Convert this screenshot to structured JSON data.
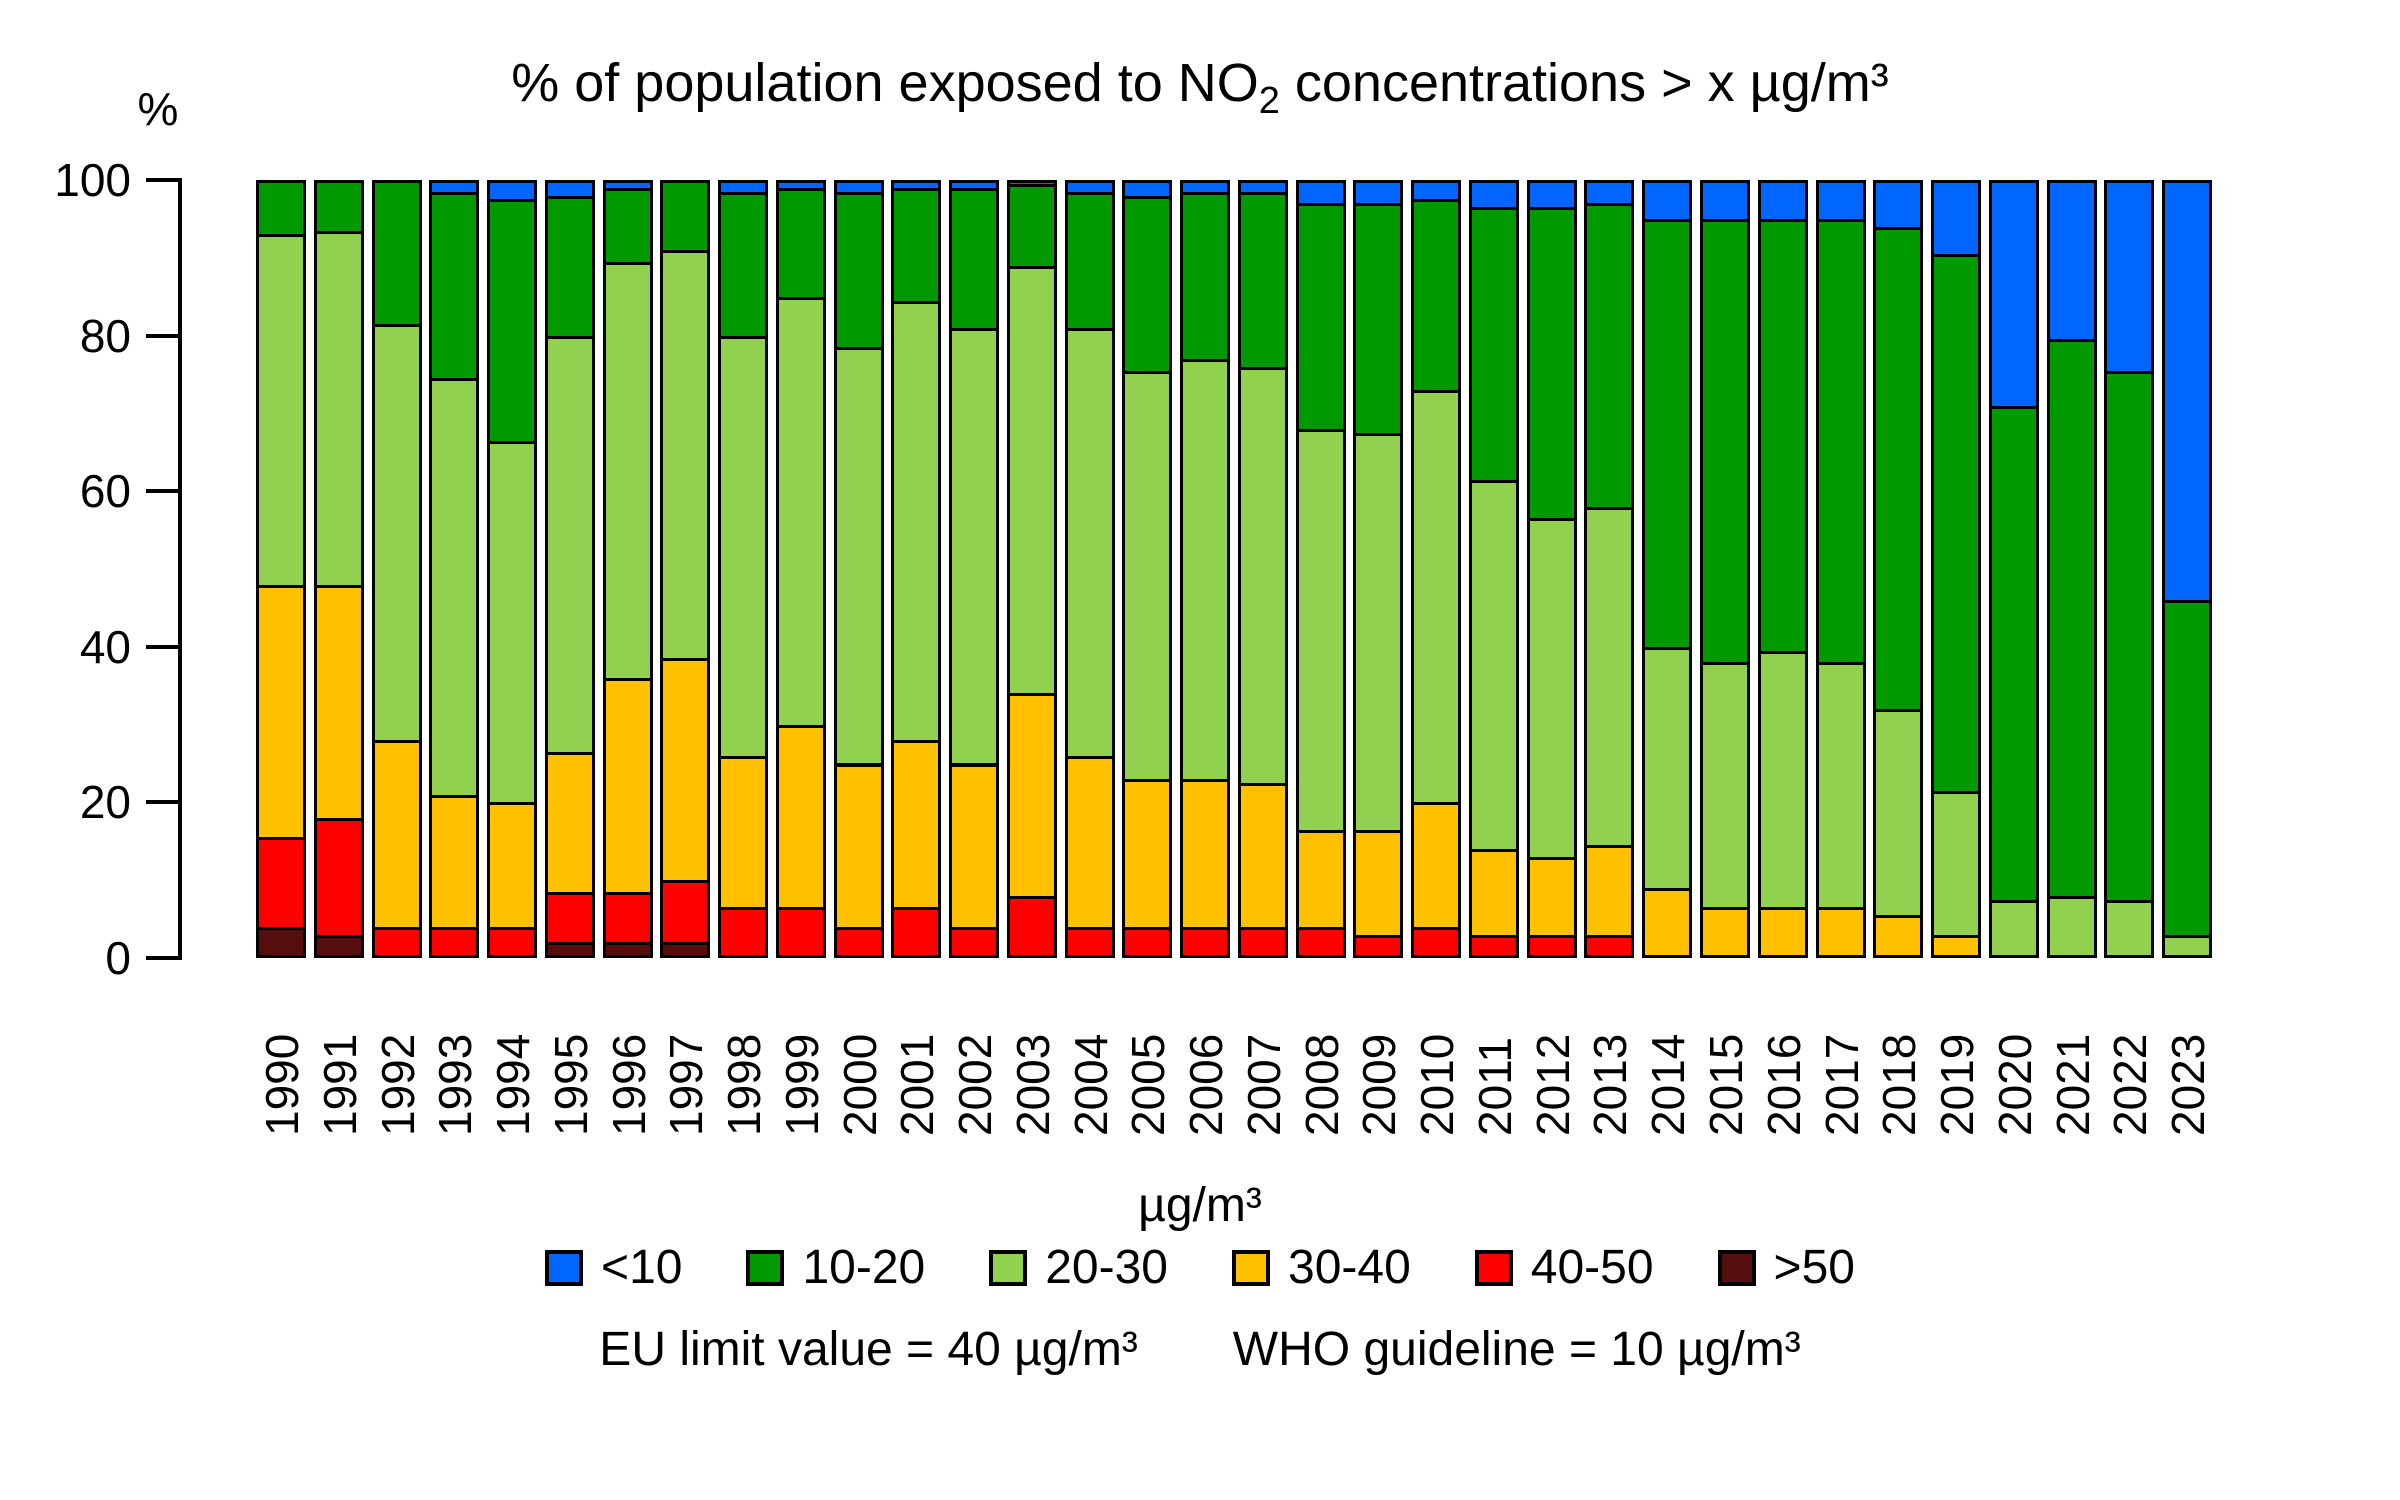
{
  "title": {
    "pre": "% of population exposed to NO",
    "sub": "2",
    "post": " concentrations > x µg/m³"
  },
  "y_axis": {
    "label": "%",
    "ticks": [
      0,
      20,
      40,
      60,
      80,
      100
    ]
  },
  "legend": {
    "title": "µg/m³",
    "items": [
      {
        "label": "<10",
        "color": "#0066FF"
      },
      {
        "label": "10-20",
        "color": "#009900"
      },
      {
        "label": "20-30",
        "color": "#92D050"
      },
      {
        "label": "30-40",
        "color": "#FFC000"
      },
      {
        "label": "40-50",
        "color": "#FF0000"
      },
      {
        "label": ">50",
        "color": "#560D0D"
      }
    ]
  },
  "footnotes": {
    "eu": "EU limit value = 40 µg/m³",
    "who": "WHO guideline = 10 µg/m³"
  },
  "chart_data": {
    "type": "bar",
    "stacked": true,
    "title": "% of population exposed to NO2 concentrations > x µg/m³",
    "xlabel": "",
    "ylabel": "%",
    "ylim": [
      0,
      100
    ],
    "grid": false,
    "legend_position": "bottom",
    "legend_title": "µg/m³",
    "categories": [
      "1990",
      "1991",
      "1992",
      "1993",
      "1994",
      "1995",
      "1996",
      "1997",
      "1998",
      "1999",
      "2000",
      "2001",
      "2002",
      "2003",
      "2004",
      "2005",
      "2006",
      "2007",
      "2008",
      "2009",
      "2010",
      "2011",
      "2012",
      "2013",
      "2014",
      "2015",
      "2016",
      "2017",
      "2018",
      "2019",
      "2020",
      "2021",
      "2022",
      "2023"
    ],
    "stack_order_bottom_to_top": [
      ">50",
      "40-50",
      "30-40",
      "20-30",
      "10-20",
      "<10"
    ],
    "series": [
      {
        "name": "<10",
        "color": "#0066FF",
        "values": [
          0,
          0,
          0,
          1.5,
          2.5,
          2,
          1,
          0,
          1.5,
          1,
          1.5,
          1,
          1,
          0.5,
          1.5,
          2,
          1.5,
          1.5,
          3,
          3,
          2.5,
          3.5,
          3.5,
          3,
          5,
          5,
          5,
          5,
          6,
          9.5,
          29,
          20.5,
          24.5,
          54
        ]
      },
      {
        "name": "10-20",
        "color": "#009900",
        "values": [
          7,
          6.5,
          18.5,
          24,
          31,
          18,
          9.5,
          9,
          18.5,
          14,
          20,
          14.5,
          18,
          10.5,
          17.5,
          22.5,
          21.5,
          22.5,
          29,
          29.5,
          24.5,
          35,
          40,
          39,
          55,
          57,
          55.5,
          57,
          62,
          69,
          63.5,
          71.5,
          68,
          43
        ]
      },
      {
        "name": "20-30",
        "color": "#92D050",
        "values": [
          45,
          45.5,
          53.5,
          53.5,
          46.5,
          53.5,
          53.5,
          52.5,
          54,
          55,
          53.5,
          56.5,
          56,
          55,
          55,
          52.5,
          54,
          53.5,
          51.5,
          51,
          53,
          47.5,
          43.5,
          43.5,
          31,
          31.5,
          33,
          31.5,
          26.5,
          18.5,
          7.5,
          8,
          7.5,
          3
        ]
      },
      {
        "name": "30-40",
        "color": "#FFC000",
        "values": [
          32.5,
          30,
          24,
          17,
          16,
          18,
          27.5,
          28.5,
          19.5,
          23.5,
          21,
          21.5,
          21,
          26,
          22,
          19,
          19,
          18.5,
          12.5,
          13.5,
          16,
          11,
          10,
          11.5,
          9,
          6.5,
          6.5,
          6.5,
          5.5,
          3,
          0,
          0,
          0,
          0
        ]
      },
      {
        "name": "40-50",
        "color": "#FF0000",
        "values": [
          11.5,
          15,
          4,
          4,
          4,
          6.5,
          6.5,
          8,
          6.5,
          6.5,
          4,
          6.5,
          4,
          8,
          4,
          4,
          4,
          4,
          4,
          3,
          4,
          3,
          3,
          3,
          0,
          0,
          0,
          0,
          0,
          0,
          0,
          0,
          0,
          0
        ]
      },
      {
        "name": ">50",
        "color": "#560D0D",
        "values": [
          4,
          3,
          0,
          0,
          0,
          2,
          2,
          2,
          0,
          0,
          0,
          0,
          0,
          0,
          0,
          0,
          0,
          0,
          0,
          0,
          0,
          0,
          0,
          0,
          0,
          0,
          0,
          0,
          0,
          0,
          0,
          0,
          0,
          0
        ]
      }
    ]
  }
}
